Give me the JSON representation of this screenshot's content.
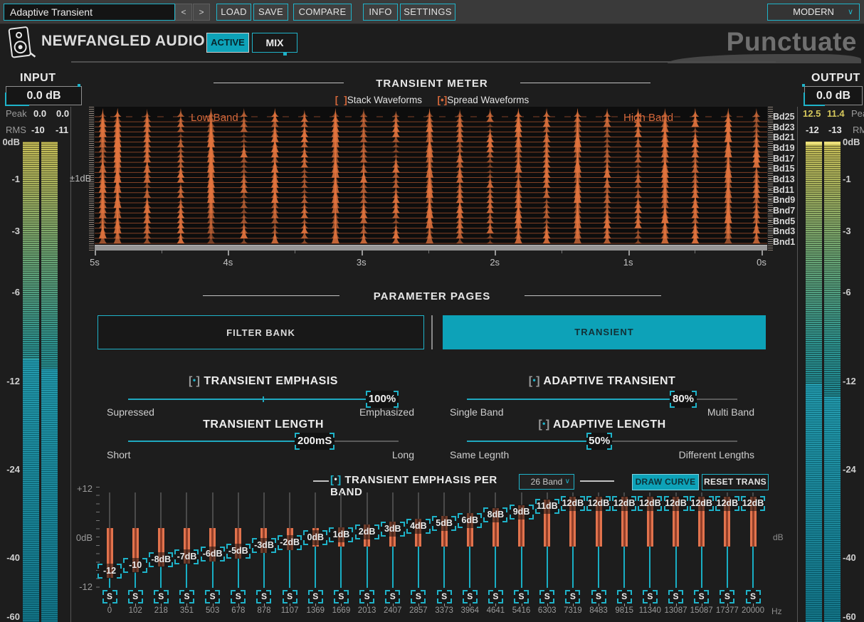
{
  "titlebar": {
    "preset": "Adaptive Transient",
    "prev": "<",
    "next": ">",
    "buttons": [
      "LOAD",
      "SAVE",
      "COMPARE",
      "INFO",
      "SETTINGS"
    ],
    "skin": "MODERN"
  },
  "header": {
    "brand": "NEWFANGLED AUDIO",
    "active_label": "ACTIVE",
    "mix_label": "MIX",
    "product": "Punctuate"
  },
  "input": {
    "title": "INPUT",
    "gain": "0.0 dB",
    "peak_label": "Peak",
    "peak": [
      "0.0",
      "0.0"
    ],
    "rms_label": "RMS",
    "rms": [
      "-10",
      "-11"
    ],
    "scale": [
      "0dB",
      "-1",
      "-3",
      "-6",
      "-12",
      "-24",
      "-40",
      "-60"
    ]
  },
  "output": {
    "title": "OUTPUT",
    "gain": "0.0 dB",
    "peak_label": "Peak",
    "peak": [
      "12.5",
      "11.4"
    ],
    "rms_label": "RMS",
    "rms": [
      "-12",
      "-13"
    ],
    "scale": [
      "0dB",
      "-1",
      "-3",
      "-6",
      "-12",
      "-24",
      "-40",
      "-60"
    ]
  },
  "meter_section": {
    "title": "TRANSIENT METER",
    "stack_label": "Stack Waveforms",
    "spread_label": "Spread Waveforms",
    "scale_label": "±1dB",
    "low_band": "Low Band",
    "high_band": "High Band",
    "band_labels": [
      "Bd25",
      "Bd23",
      "Bd21",
      "Bd19",
      "Bd17",
      "Bd15",
      "Bd13",
      "Bd11",
      "Bnd9",
      "Bnd7",
      "Bnd5",
      "Bnd3",
      "Bnd1"
    ],
    "time_ticks": [
      "5s",
      "4s",
      "3s",
      "2s",
      "1s",
      "0s"
    ]
  },
  "pages": {
    "title": "PARAMETER PAGES",
    "tabs": [
      {
        "label": "FILTER BANK",
        "active": false
      },
      {
        "label": "TRANSIENT",
        "active": true
      }
    ]
  },
  "params": {
    "emphasis": {
      "title": "TRANSIENT EMPHASIS",
      "value": "100%",
      "min": "Supressed",
      "max": "Emphasized",
      "pct": 100
    },
    "adaptive": {
      "title": "ADAPTIVE TRANSIENT",
      "value": "80%",
      "min": "Single Band",
      "max": "Multi Band",
      "pct": 80
    },
    "length": {
      "title": "TRANSIENT LENGTH",
      "value": "200mS",
      "min": "Short",
      "max": "Long",
      "pct": 69
    },
    "adaptive_length": {
      "title": "ADAPTIVE LENGTH",
      "value": "50%",
      "min": "Same Legnth",
      "max": "Different Lengths",
      "pct": 49
    }
  },
  "per_band": {
    "title": "TRANSIENT EMPHASIS PER BAND",
    "band_count": "26 Band",
    "draw_curve": "DRAW CURVE",
    "reset": "RESET TRANS",
    "scale_top": "+12",
    "scale_mid": "0dB",
    "scale_bottom": "-12",
    "unit": "dB",
    "freq_unit": "Hz",
    "solo_label": "S",
    "bands": [
      {
        "label": "-12",
        "value": -12,
        "freq": "0"
      },
      {
        "label": "-10",
        "value": -10,
        "freq": "102"
      },
      {
        "label": "-8dB",
        "value": -8,
        "freq": "218"
      },
      {
        "label": "-7dB",
        "value": -7,
        "freq": "351"
      },
      {
        "label": "-6dB",
        "value": -6,
        "freq": "503"
      },
      {
        "label": "-5dB",
        "value": -5,
        "freq": "678"
      },
      {
        "label": "-3dB",
        "value": -3,
        "freq": "878"
      },
      {
        "label": "-2dB",
        "value": -2,
        "freq": "1107"
      },
      {
        "label": "0dB",
        "value": 0,
        "freq": "1369"
      },
      {
        "label": "1dB",
        "value": 1,
        "freq": "1669"
      },
      {
        "label": "2dB",
        "value": 2,
        "freq": "2013"
      },
      {
        "label": "3dB",
        "value": 3,
        "freq": "2407"
      },
      {
        "label": "4dB",
        "value": 4,
        "freq": "2857"
      },
      {
        "label": "5dB",
        "value": 5,
        "freq": "3373"
      },
      {
        "label": "6dB",
        "value": 6,
        "freq": "3964"
      },
      {
        "label": "8dB",
        "value": 8,
        "freq": "4641"
      },
      {
        "label": "9dB",
        "value": 9,
        "freq": "5416"
      },
      {
        "label": "11dB",
        "value": 11,
        "freq": "6303"
      },
      {
        "label": "12dB",
        "value": 12,
        "freq": "7319"
      },
      {
        "label": "12dB",
        "value": 12,
        "freq": "8483"
      },
      {
        "label": "12dB",
        "value": 12,
        "freq": "9815"
      },
      {
        "label": "12dB",
        "value": 12,
        "freq": "11340"
      },
      {
        "label": "12dB",
        "value": 12,
        "freq": "13087"
      },
      {
        "label": "12dB",
        "value": 12,
        "freq": "15087"
      },
      {
        "label": "12dB",
        "value": 12,
        "freq": "17377"
      },
      {
        "label": "12dB",
        "value": 12,
        "freq": "20000"
      }
    ]
  },
  "icons": {
    "radio_open": "[",
    "radio_close": "]",
    "radio_dot": "•",
    "chevron": "∨"
  }
}
